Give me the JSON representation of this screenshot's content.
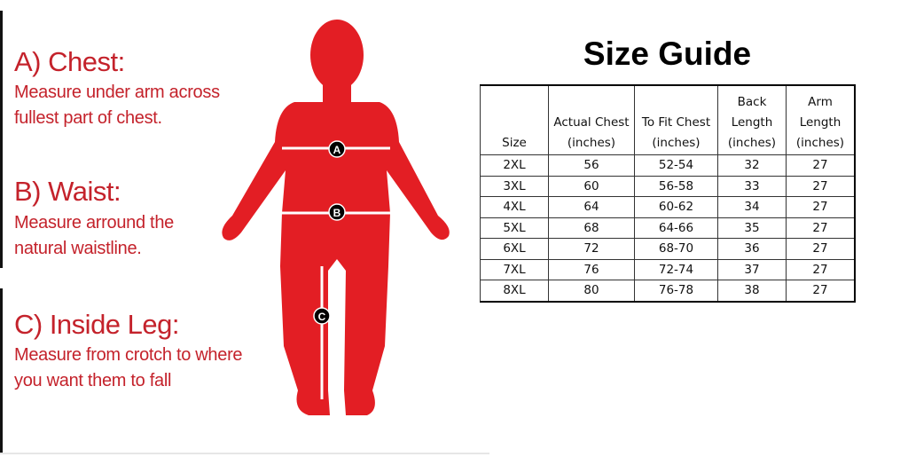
{
  "guide": {
    "chest": {
      "heading": "A) Chest:",
      "line1": "Measure under arm across",
      "line2": "fullest part of chest.",
      "marker": "A"
    },
    "waist": {
      "heading": "B) Waist:",
      "line1": "Measure arround the",
      "line2": "natural waistline.",
      "marker": "B"
    },
    "leg": {
      "heading": "C) Inside Leg:",
      "line1": "Measure from crotch to where",
      "line2": "you want them to fall",
      "marker": "C"
    },
    "figure_color": "#e31e24"
  },
  "size_table": {
    "title": "Size Guide",
    "headers": [
      [
        "Size"
      ],
      [
        "Actual Chest",
        "(inches)"
      ],
      [
        "To Fit Chest",
        "(inches)"
      ],
      [
        "Back",
        "Length",
        "(inches)"
      ],
      [
        "Arm",
        "Length",
        "(inches)"
      ]
    ],
    "rows": [
      [
        "2XL",
        "56",
        "52-54",
        "32",
        "27"
      ],
      [
        "3XL",
        "60",
        "56-58",
        "33",
        "27"
      ],
      [
        "4XL",
        "64",
        "60-62",
        "34",
        "27"
      ],
      [
        "5XL",
        "68",
        "64-66",
        "35",
        "27"
      ],
      [
        "6XL",
        "72",
        "68-70",
        "36",
        "27"
      ],
      [
        "7XL",
        "76",
        "72-74",
        "37",
        "27"
      ],
      [
        "8XL",
        "80",
        "76-78",
        "38",
        "27"
      ]
    ]
  }
}
